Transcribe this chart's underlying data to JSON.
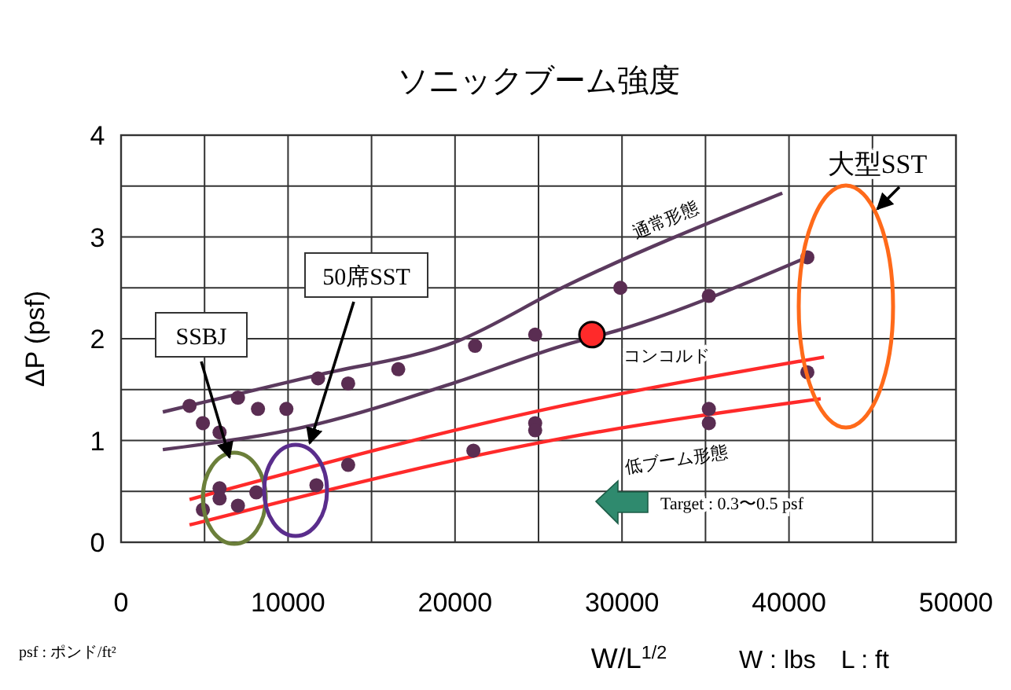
{
  "chart_data": {
    "type": "scatter",
    "title": "ソニックブーム強度",
    "xlabel": "W/L$^{1/2}$",
    "ylabel": "ΔP (psf)",
    "xlim": [
      0,
      50000
    ],
    "ylim": [
      0,
      4
    ],
    "xticks": [
      0,
      {
        "value": 5000,
        "label": null
      },
      10000,
      {
        "value": 15000,
        "label": null
      },
      20000,
      {
        "value": 25000,
        "label": null
      },
      30000,
      {
        "value": 35000,
        "label": null
      },
      40000,
      {
        "value": 45000,
        "label": null
      },
      50000
    ],
    "yticks": [
      0,
      {
        "value": 0.5,
        "label": null
      },
      1,
      {
        "value": 1.5,
        "label": null
      },
      2,
      {
        "value": 2.5,
        "label": null
      },
      3,
      {
        "value": 3.5,
        "label": null
      },
      4
    ],
    "grid": true,
    "marker": "circle",
    "series": [
      {
        "color": "#5a2d52",
        "x": [
          4100,
          4900,
          5900,
          7000,
          8200,
          9900,
          11800,
          13600,
          16600,
          21200,
          24800,
          24800,
          24800,
          21100,
          13600,
          11700,
          8100,
          5900,
          5900,
          4900,
          7000,
          29900,
          35200,
          41100,
          41100,
          35200,
          35200
        ],
        "values": [
          1.34,
          1.17,
          1.08,
          1.42,
          1.31,
          1.31,
          1.61,
          1.56,
          1.7,
          1.93,
          2.04,
          1.17,
          1.1,
          0.9,
          0.76,
          0.56,
          0.49,
          0.53,
          0.43,
          0.32,
          0.36,
          2.5,
          2.42,
          2.8,
          1.67,
          1.31,
          1.17
        ]
      },
      {
        "type": "line",
        "name": "通常形態",
        "color": "#5b3a5e",
        "marker": "none",
        "x": [
          2500,
          11700,
          20200,
          26400,
          39600
        ],
        "values": [
          1.28,
          1.64,
          1.98,
          2.5,
          3.43
        ]
      },
      {
        "type": "line",
        "color": "#5b3a5e",
        "marker": "none",
        "x": [
          2500,
          11700,
          20200,
          26400,
          29900,
          40800
        ],
        "values": [
          0.91,
          1.16,
          1.58,
          1.93,
          2.09,
          2.78
        ]
      },
      {
        "type": "line",
        "color": "#ff2a2a",
        "marker": "none",
        "x": [
          4100,
          26400,
          42100
        ],
        "values": [
          0.42,
          1.34,
          1.82
        ]
      },
      {
        "type": "line",
        "name": "低ブーム形態",
        "color": "#ff2a2a",
        "marker": "none",
        "x": [
          4100,
          26400,
          41900
        ],
        "values": [
          0.17,
          1.02,
          1.41
        ]
      },
      {
        "name": "コンコルド",
        "color": "#ff2a2a",
        "x": [
          28200
        ],
        "values": [
          2.04
        ]
      }
    ],
    "annotations": [
      "psf : ポンド/ft²",
      "W : lbs　L : ft",
      "Target : 0.3〜0.5 psf",
      "SSBJ",
      "50席SST",
      "大型SST"
    ]
  }
}
